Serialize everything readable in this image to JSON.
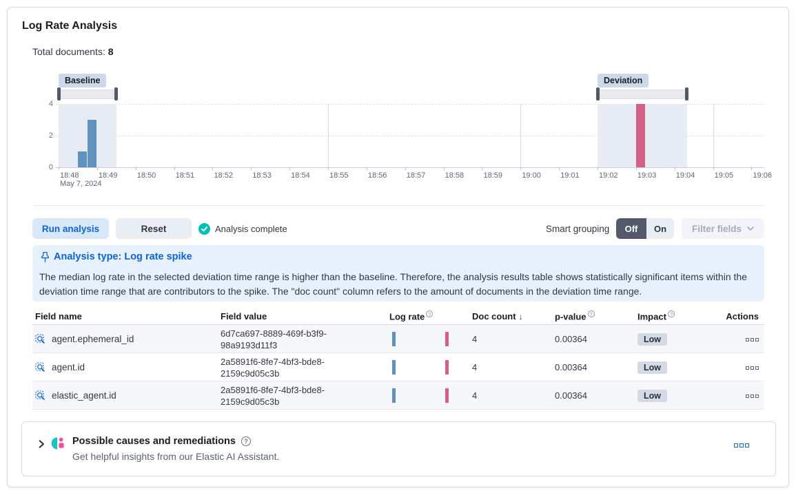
{
  "page": {
    "title": "Log Rate Analysis"
  },
  "summary": {
    "label": "Total documents:",
    "value": "8"
  },
  "chart_data": {
    "type": "bar",
    "title": "",
    "baseline_label": "Baseline",
    "deviation_label": "Deviation",
    "date_label": "May 7, 2024",
    "ylim": [
      0,
      4
    ],
    "y_ticks": [
      4,
      2,
      0
    ],
    "x_ticks": [
      "18:48",
      "18:49",
      "18:50",
      "18:51",
      "18:52",
      "18:53",
      "18:54",
      "18:55",
      "18:56",
      "18:57",
      "18:58",
      "18:59",
      "19:00",
      "19:01",
      "19:02",
      "19:03",
      "19:04",
      "19:05",
      "19:06"
    ],
    "major_gridlines": [
      "18:55",
      "19:00",
      "19:05"
    ],
    "baseline_window": {
      "start": "18:48:00",
      "end": "18:49:30"
    },
    "deviation_window": {
      "start": "19:02:00",
      "end": "19:04:20"
    },
    "bars": [
      {
        "time": "18:48:30",
        "value": 1,
        "series": "baseline"
      },
      {
        "time": "18:48:45",
        "value": 3,
        "series": "baseline"
      },
      {
        "time": "19:03:00",
        "value": 4,
        "series": "deviation"
      }
    ]
  },
  "controls": {
    "run_button": "Run analysis",
    "reset_button": "Reset",
    "status": "Analysis complete",
    "smart_grouping_label": "Smart grouping",
    "toggle_off": "Off",
    "toggle_on": "On",
    "filter_fields_button": "Filter fields"
  },
  "callout": {
    "title": "Analysis type: Log rate spike",
    "body": "The median log rate in the selected deviation time range is higher than the baseline. Therefore, the analysis results table shows statistically significant items within the deviation time range that are contributors to the spike. The \"doc count\" column refers to the amount of documents in the deviation time range."
  },
  "table": {
    "columns": [
      "Field name",
      "Field value",
      "Log rate",
      "Doc count",
      "p-value",
      "Impact",
      "Actions"
    ],
    "sorted_column": "Doc count",
    "sort_direction": "desc",
    "rows": [
      {
        "field_name": "agent.ephemeral_id",
        "field_value": "6d7ca697-8889-469f-b3f9-98a9193d11f3",
        "doc_count": "4",
        "p_value": "0.00364",
        "impact": "Low"
      },
      {
        "field_name": "agent.id",
        "field_value": "2a5891f6-8fe7-4bf3-bde8-2159c9d05c3b",
        "doc_count": "4",
        "p_value": "0.00364",
        "impact": "Low"
      },
      {
        "field_name": "elastic_agent.id",
        "field_value": "2a5891f6-8fe7-4bf3-bde8-2159c9d05c3b",
        "doc_count": "4",
        "p_value": "0.00364",
        "impact": "Low"
      }
    ]
  },
  "insights": {
    "title": "Possible causes and remediations",
    "subtitle": "Get helpful insights from our Elastic AI Assistant."
  },
  "colors": {
    "primary_blue": "#0b64dd",
    "success_green": "#00BFB3",
    "baseline_bar": "#6092C0",
    "deviation_bar": "#D36086",
    "window_shade": "#e7ebf4",
    "brush_handle": "#535966",
    "badge_gray": "#d3dae6",
    "ai_teal": "#16C5C0",
    "ai_pink": "#F04E98"
  }
}
